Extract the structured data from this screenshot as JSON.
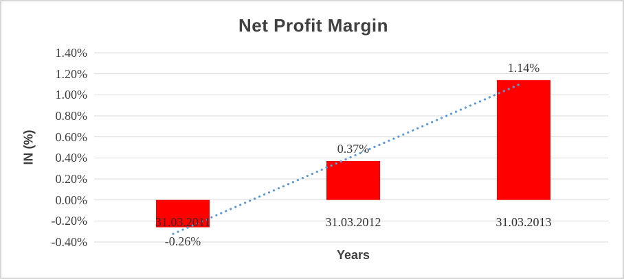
{
  "chart_data": {
    "type": "bar",
    "title": "Net Profit Margin",
    "xlabel": "Years",
    "ylabel": "IN (%)",
    "categories": [
      "31.03.2011",
      "31.03.2012",
      "31.03.2013"
    ],
    "values": [
      -0.26,
      0.37,
      1.14
    ],
    "data_labels": [
      "-0.26%",
      "0.37%",
      "1.14%"
    ],
    "ytick_labels": [
      "1.40%",
      "1.20%",
      "1.00%",
      "0.80%",
      "0.60%",
      "0.40%",
      "0.20%",
      "0.00%",
      "-0.20%",
      "-0.40%"
    ],
    "ytick_values": [
      1.4,
      1.2,
      1.0,
      0.8,
      0.6,
      0.4,
      0.2,
      0.0,
      -0.2,
      -0.4
    ],
    "ylim": [
      -0.4,
      1.4
    ],
    "grid": true,
    "legend": "none",
    "bar_color": "#FF0000",
    "gridline_color": "#D9D9D9",
    "trendline": {
      "type": "linear",
      "style": "dotted",
      "color": "#5B9BD5"
    }
  }
}
